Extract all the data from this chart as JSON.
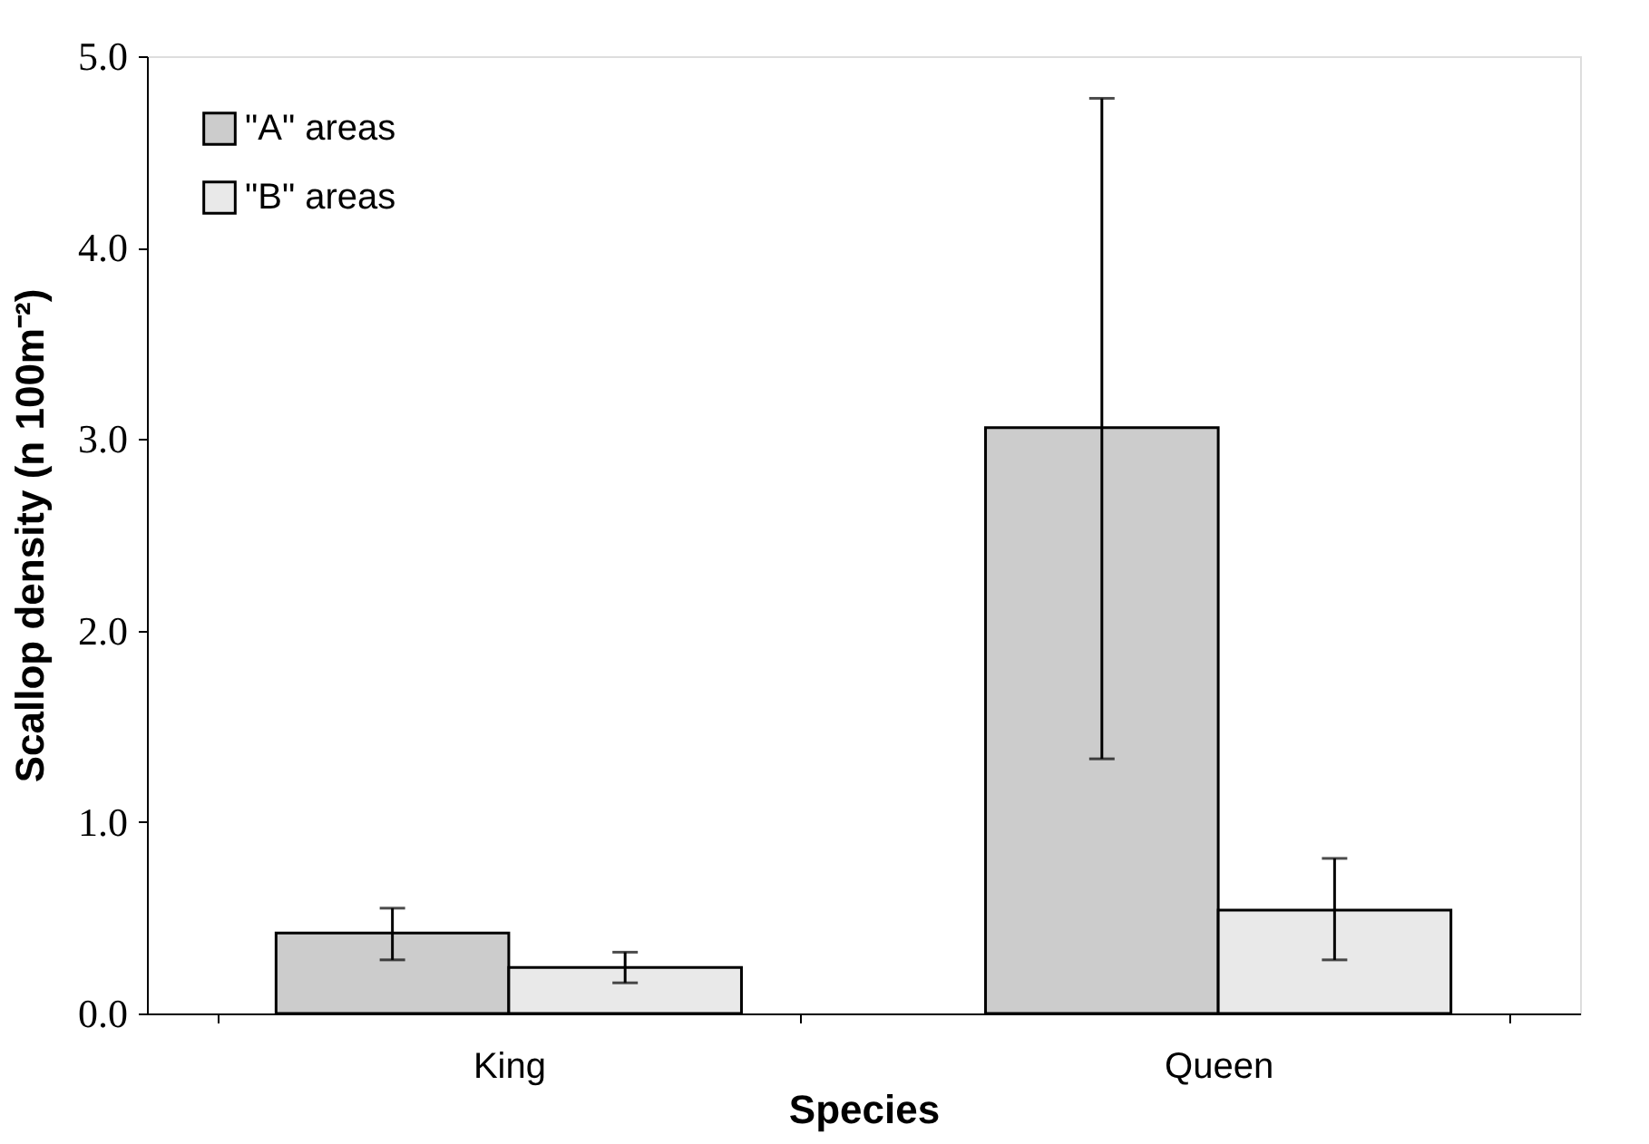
{
  "chart_data": {
    "type": "bar",
    "xlabel": "Species",
    "ylabel": "Scallop density (n 100m⁻²)",
    "categories": [
      "King",
      "Queen"
    ],
    "series": [
      {
        "name": "\"A\" areas",
        "color": "#cccccc",
        "values": [
          0.42,
          3.06
        ],
        "errors": [
          [
            0.28,
            0.55
          ],
          [
            1.33,
            4.78
          ]
        ]
      },
      {
        "name": "\"B\" areas",
        "color": "#e9e9e9",
        "values": [
          0.24,
          0.54
        ],
        "errors": [
          [
            0.16,
            0.32
          ],
          [
            0.28,
            0.81
          ]
        ]
      }
    ],
    "ylim": [
      0,
      5
    ],
    "yticks": [
      {
        "value": 0,
        "label": "0.0"
      },
      {
        "value": 1,
        "label": "1.0"
      },
      {
        "value": 2,
        "label": "2.0"
      },
      {
        "value": 3,
        "label": "3.0"
      },
      {
        "value": 4,
        "label": "4.0"
      },
      {
        "value": 5,
        "label": "5.0"
      }
    ],
    "grid": false,
    "legend": "top left"
  }
}
